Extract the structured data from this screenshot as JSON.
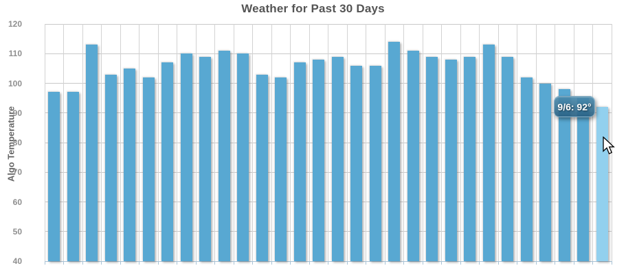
{
  "chart_data": {
    "type": "bar",
    "title": "Weather for Past 30 Days",
    "ylabel": "Algo Temperature",
    "xlabel": "",
    "ylim": [
      40,
      120
    ],
    "yticks": [
      120,
      110,
      100,
      90,
      80,
      70,
      60,
      50,
      40
    ],
    "grid": true,
    "legend": "none",
    "categories_note": "30 daily bars ending 9/6; x-axis shows tick marks only, no labels",
    "values": [
      97,
      97,
      113,
      103,
      105,
      102,
      107,
      110,
      109,
      111,
      110,
      103,
      102,
      107,
      108,
      109,
      106,
      106,
      114,
      111,
      109,
      108,
      109,
      113,
      109,
      102,
      100,
      98,
      95,
      92
    ],
    "highlighted_index": 29,
    "colors": {
      "bar": "#58a8d2",
      "bar_highlight": "#92d0ee",
      "grid": "#c9c9c9",
      "axis_line": "#a9c3d6",
      "title_text": "#545454",
      "tick_text": "#8f8f8f"
    }
  },
  "tooltip": {
    "text": "9/6: 92°"
  },
  "cursor": {
    "icon": "arrow-pointer"
  }
}
